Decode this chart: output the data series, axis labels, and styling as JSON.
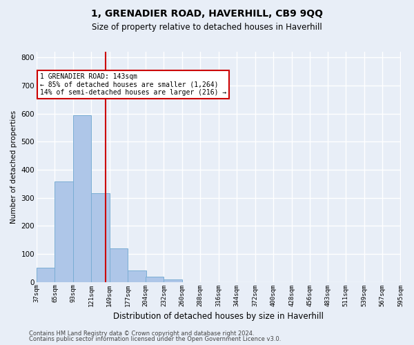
{
  "title": "1, GRENADIER ROAD, HAVERHILL, CB9 9QQ",
  "subtitle": "Size of property relative to detached houses in Haverhill",
  "xlabel": "Distribution of detached houses by size in Haverhill",
  "ylabel": "Number of detached properties",
  "footnote1": "Contains HM Land Registry data © Crown copyright and database right 2024.",
  "footnote2": "Contains public sector information licensed under the Open Government Licence v3.0.",
  "bin_edges": [
    37,
    65,
    93,
    121,
    149,
    177,
    204,
    232,
    260,
    288,
    316,
    344,
    372,
    400,
    428,
    456,
    483,
    511,
    539,
    567,
    595
  ],
  "bar_heights": [
    50,
    357,
    595,
    315,
    120,
    40,
    20,
    10,
    0,
    0,
    0,
    0,
    0,
    0,
    0,
    0,
    0,
    0,
    0,
    0
  ],
  "bar_color": "#aec6e8",
  "bar_edgecolor": "#7aadd4",
  "bg_color": "#e8eef7",
  "grid_color": "#ffffff",
  "vline_x": 143,
  "vline_color": "#cc0000",
  "ylim": [
    0,
    820
  ],
  "yticks": [
    0,
    100,
    200,
    300,
    400,
    500,
    600,
    700,
    800
  ],
  "annotation_text": "1 GRENADIER ROAD: 143sqm\n← 85% of detached houses are smaller (1,264)\n14% of semi-detached houses are larger (216) →",
  "annotation_box_color": "#ffffff",
  "annotation_box_edgecolor": "#cc0000"
}
